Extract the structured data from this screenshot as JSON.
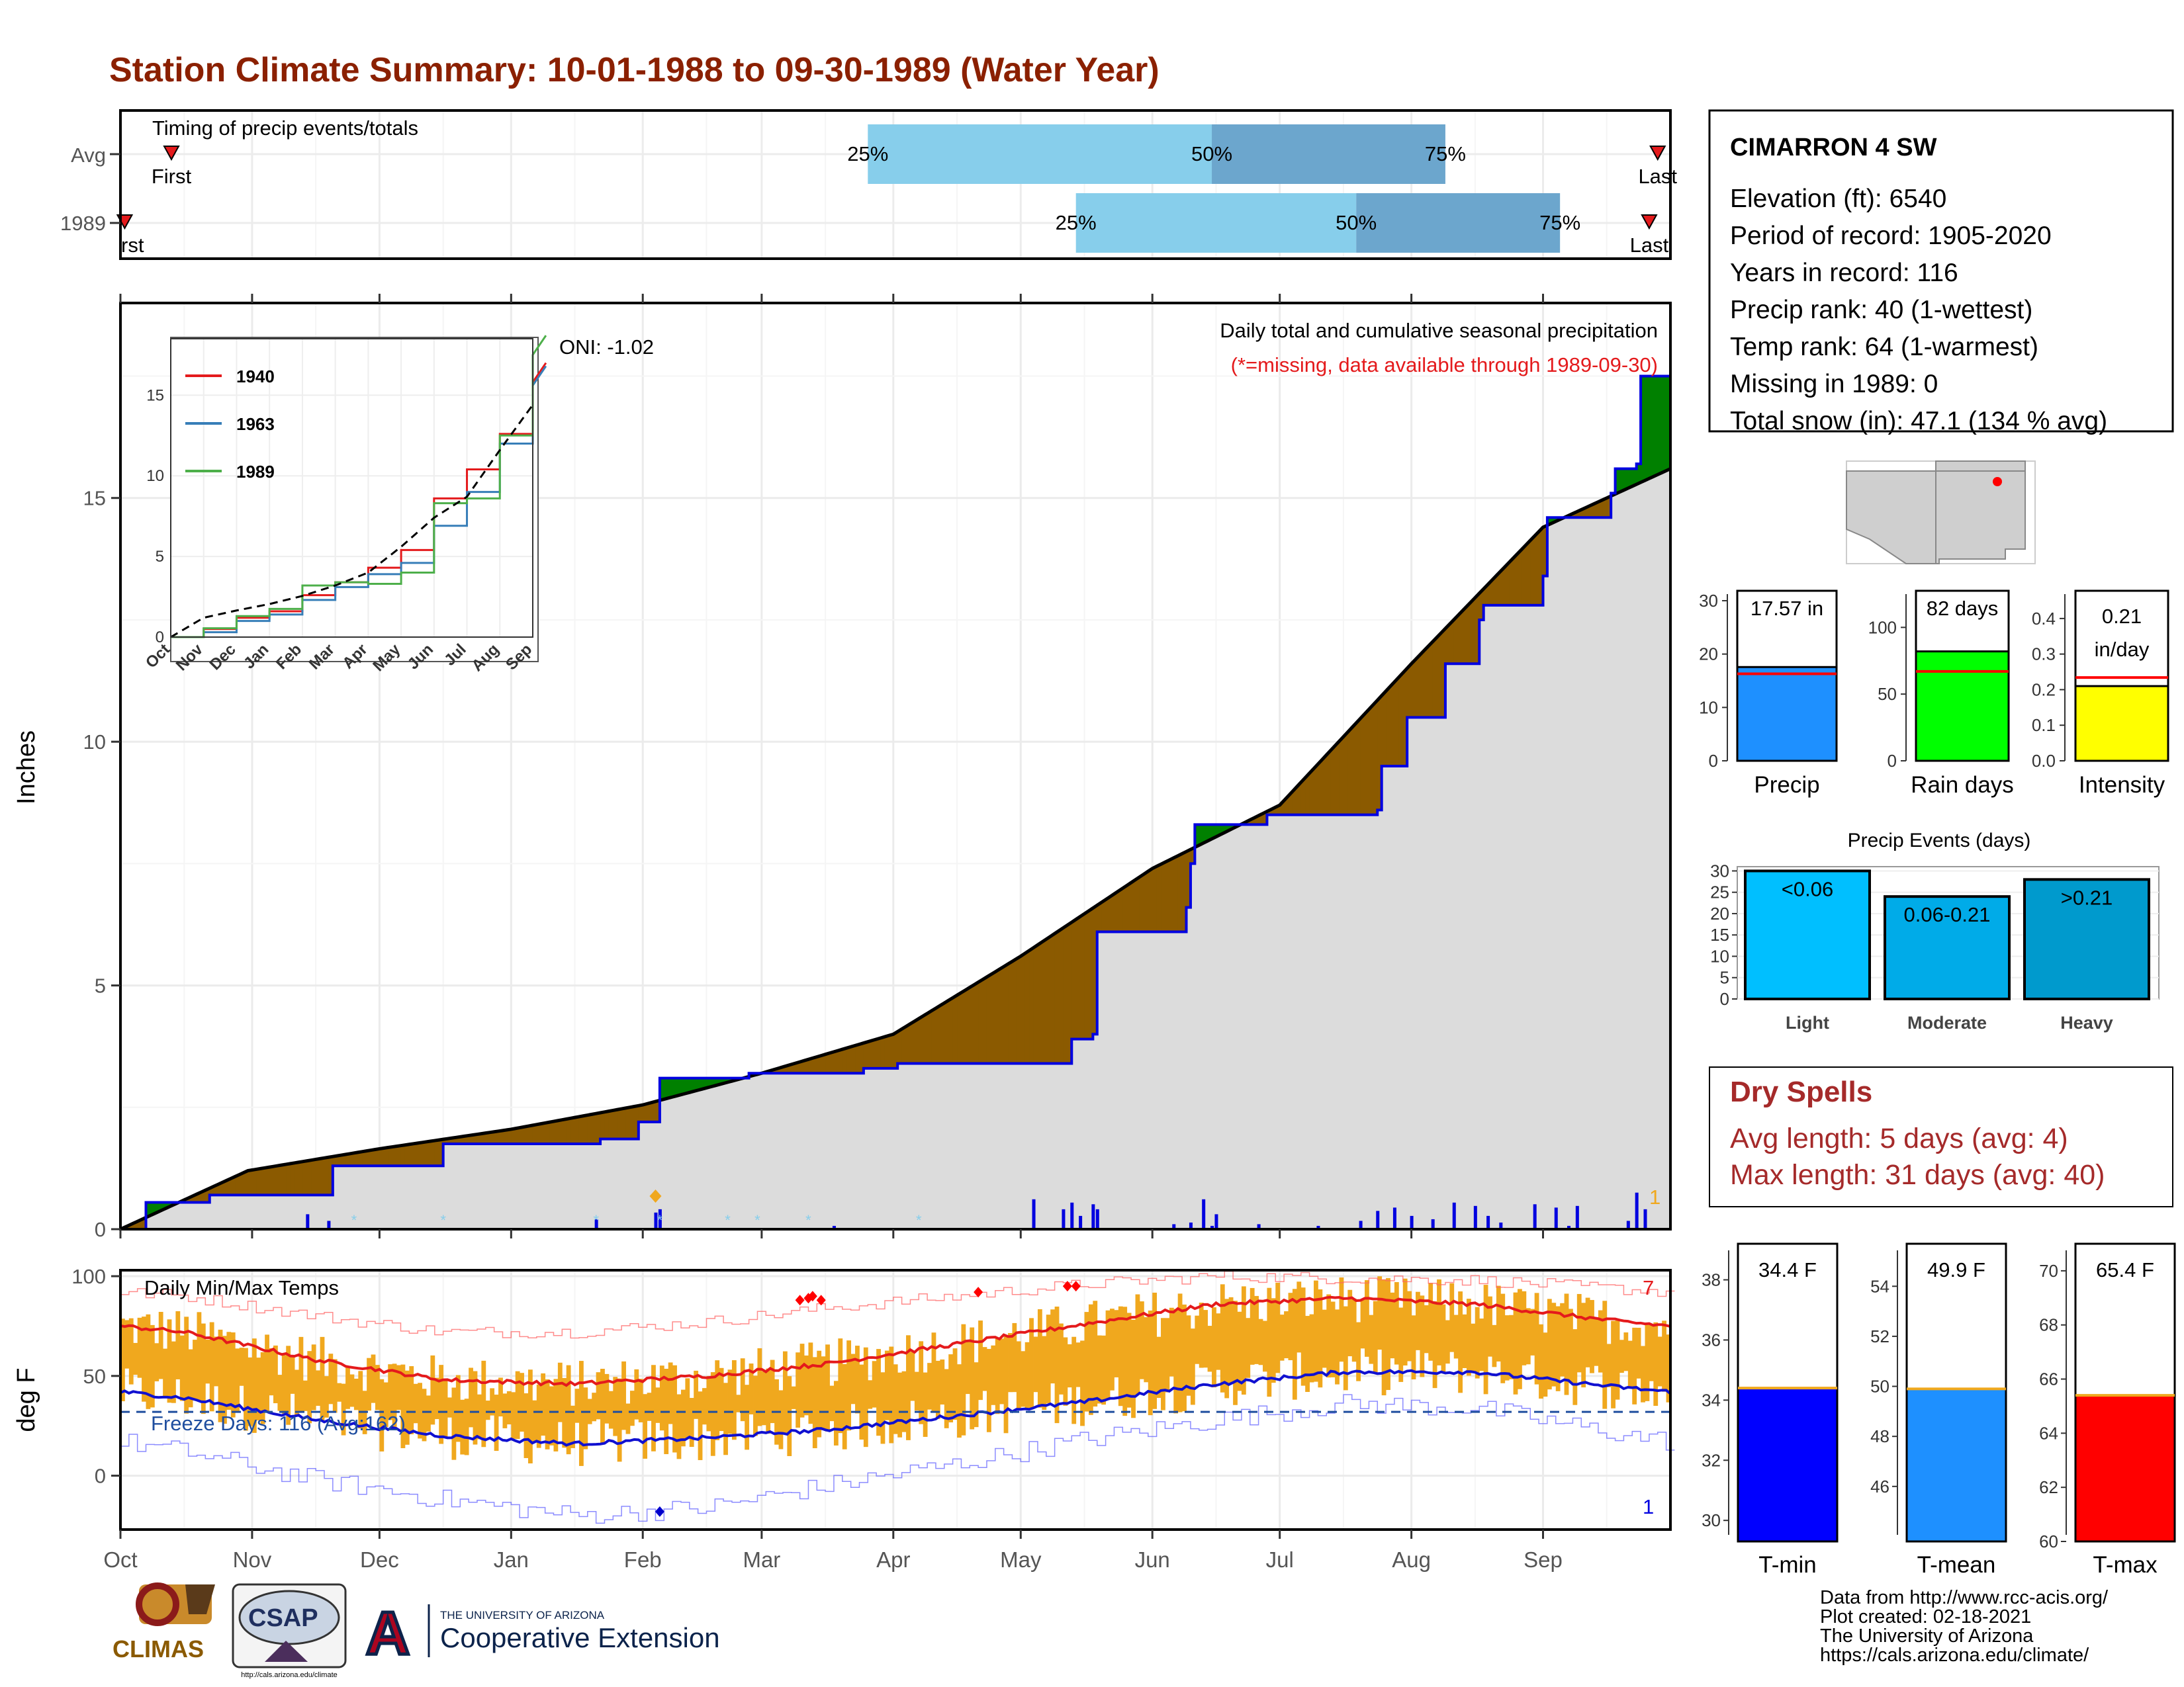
{
  "title": "Station Climate Summary: 10-01-1988 to 09-30-1989 (Water Year)",
  "colors": {
    "title": "#8B2000",
    "green": "#008000",
    "brown": "#8B5A00",
    "gray_fill": "#dcdcdc",
    "light_blue": "#87CEEB",
    "mid_blue": "#6CA6CD",
    "orange": "#F0A81E",
    "red": "#E41A1C",
    "dark_red": "#A52A2A",
    "blue": "#0000E0"
  },
  "timing": {
    "label": "Timing of precip events/totals",
    "rows": [
      "Avg",
      "1989"
    ],
    "first_label": "First",
    "first_label_clipped": "rst",
    "last_label": "Last",
    "pct_labels": [
      "25%",
      "50%",
      "75%"
    ]
  },
  "months": [
    "Oct",
    "Nov",
    "Dec",
    "Jan",
    "Feb",
    "Mar",
    "Apr",
    "May",
    "Jun",
    "Jul",
    "Aug",
    "Sep"
  ],
  "precip_panel": {
    "ylabel": "Inches",
    "oni": "ONI: -1.02",
    "note1": "Daily total and cumulative seasonal precipitation",
    "note2": "(*=missing, data available through 1989-09-30)",
    "max_daily_label": "1"
  },
  "temp_panel": {
    "ylabel": "deg F",
    "label": "Daily Min/Max Temps",
    "freeze_days": "Freeze Days: 116 (Avg:162)",
    "record_high_count": "7",
    "record_low_count": "1"
  },
  "station": {
    "name": "CIMARRON 4 SW",
    "lines": [
      "Elevation (ft): 6540",
      "Period of record: 1905-2020",
      "Years in record: 116",
      "Precip rank: 40 (1-wettest)",
      "Temp rank: 64 (1-warmest)",
      "Missing in 1989: 0",
      "Total snow (in): 47.1 (134 % avg)"
    ]
  },
  "summary_bars": [
    {
      "label": "Precip",
      "value_text": "17.57 in",
      "value": 17.57,
      "avg": 16.3,
      "ymax": 30,
      "ticks": [
        "0",
        "10",
        "20",
        "30"
      ],
      "color": "#1E90FF"
    },
    {
      "label": "Rain days",
      "value_text": "82 days",
      "value": 82,
      "avg": 67,
      "ymax": 120,
      "ticks": [
        "0",
        "50",
        "100"
      ],
      "color": "#00FF00"
    },
    {
      "label": "Intensity",
      "value_text": "0.21 in/day",
      "value_line1": "0.21",
      "value_line2": "in/day",
      "value": 0.21,
      "avg": 0.234,
      "ymax": 0.45,
      "ticks": [
        "0.0",
        "0.1",
        "0.2",
        "0.3",
        "0.4"
      ],
      "color": "#FFFF00"
    }
  ],
  "events": {
    "title": "Precip Events (days)",
    "ticks": [
      "0",
      "5",
      "10",
      "15",
      "20",
      "25",
      "30"
    ],
    "bars": [
      {
        "label": "Light",
        "range": "<0.06",
        "value": 30,
        "color": "#00BFFF"
      },
      {
        "label": "Moderate",
        "range": "0.06-0.21",
        "value": 24,
        "color": "#00ABE8"
      },
      {
        "label": "Heavy",
        "range": ">0.21",
        "value": 28,
        "color": "#009ACD"
      }
    ]
  },
  "dry_spells": {
    "title": "Dry Spells",
    "avg": "Avg length: 5 days (avg: 4)",
    "max": "Max length: 31 days (avg: 40)"
  },
  "temp_bars": [
    {
      "label": "T-min",
      "value_text": "34.4 F",
      "value": 34.4,
      "ymin": 29.3,
      "ymax": 39.2,
      "ticks": [
        "30",
        "32",
        "34",
        "36",
        "38"
      ],
      "color": "#0000FF"
    },
    {
      "label": "T-mean",
      "value_text": "49.9 F",
      "value": 49.9,
      "ymin": 43.8,
      "ymax": 55.7,
      "ticks": [
        "46",
        "48",
        "50",
        "52",
        "54"
      ],
      "color": "#1E90FF"
    },
    {
      "label": "T-max",
      "value_text": "65.4 F",
      "value": 65.4,
      "ymin": 60,
      "ymax": 71,
      "ticks": [
        "60",
        "62",
        "64",
        "66",
        "68",
        "70"
      ],
      "color": "#FF0000"
    }
  ],
  "footer": {
    "lines": [
      "Data from http://www.rcc-acis.org/",
      "Plot created: 02-18-2021",
      "The University of Arizona",
      "https://cals.arizona.edu/climate/"
    ]
  },
  "logos": {
    "climas": "CLIMAS",
    "csap": "CSAP",
    "csap_url": "http://cals.arizona.edu/climate",
    "ua_small": "THE UNIVERSITY OF ARIZONA",
    "ua_big": "Cooperative Extension"
  },
  "chart_data": [
    {
      "type": "bar",
      "name": "timing",
      "x_unit": "day of water year",
      "rows": [
        {
          "row": "Avg",
          "first_day": 12,
          "q25_day": 176,
          "q50_day": 257,
          "q75_day": 312,
          "last_day": 362
        },
        {
          "row": "1989",
          "first_day": 1,
          "q25_day": 225,
          "q50_day": 291,
          "q75_day": 339,
          "last_day": 360
        }
      ]
    },
    {
      "type": "line",
      "name": "cumulative_precip",
      "xlabel": "",
      "ylabel": "Inches",
      "ylim": [
        0,
        19
      ],
      "x_months": [
        "Oct",
        "Nov",
        "Dec",
        "Jan",
        "Feb",
        "Mar",
        "Apr",
        "May",
        "Jun",
        "Jul",
        "Aug",
        "Sep"
      ],
      "series": [
        {
          "name": "Average",
          "x_day": [
            0,
            30,
            61,
            92,
            123,
            151,
            182,
            212,
            243,
            273,
            304,
            335,
            365
          ],
          "values": [
            0,
            1.2,
            1.65,
            2.05,
            2.55,
            3.2,
            4.0,
            5.6,
            7.4,
            8.7,
            11.6,
            14.4,
            15.6
          ]
        },
        {
          "name": "1989",
          "x_day": [
            0,
            5,
            6,
            20,
            21,
            49,
            50,
            75,
            76,
            112,
            113,
            122,
            126,
            127,
            148,
            175,
            182,
            183,
            211,
            224,
            229,
            230,
            250,
            251,
            252,
            252,
            253,
            270,
            271,
            296,
            297,
            303,
            310,
            312,
            320,
            321,
            335,
            336,
            350,
            351,
            352,
            357,
            358,
            365
          ],
          "values": [
            0,
            0,
            0.55,
            0.55,
            0.7,
            0.7,
            1.3,
            1.3,
            1.75,
            1.75,
            1.85,
            2.2,
            2.2,
            3.1,
            3.2,
            3.3,
            3.3,
            3.4,
            3.4,
            3.9,
            4.0,
            6.1,
            6.1,
            6.6,
            6.9,
            7.5,
            8.3,
            8.5,
            8.5,
            8.6,
            9.5,
            10.5,
            10.5,
            11.6,
            12.5,
            12.8,
            13.4,
            14.6,
            14.6,
            15.1,
            15.6,
            15.7,
            17.5,
            17.5
          ]
        }
      ],
      "daily_precip_in": [
        {
          "day": 44,
          "value": 0.09
        },
        {
          "day": 49,
          "value": 0.05
        },
        {
          "day": 112,
          "value": 0.06
        },
        {
          "day": 126,
          "value": 0.1
        },
        {
          "day": 127,
          "value": 0.12
        },
        {
          "day": 168,
          "value": 0.02
        },
        {
          "day": 215,
          "value": 0.18
        },
        {
          "day": 222,
          "value": 0.12
        },
        {
          "day": 224,
          "value": 0.16
        },
        {
          "day": 226,
          "value": 0.08
        },
        {
          "day": 229,
          "value": 0.15
        },
        {
          "day": 230,
          "value": 0.12
        },
        {
          "day": 248,
          "value": 0.03
        },
        {
          "day": 252,
          "value": 0.04
        },
        {
          "day": 255,
          "value": 0.18
        },
        {
          "day": 257,
          "value": 0.02
        },
        {
          "day": 258,
          "value": 0.09
        },
        {
          "day": 268,
          "value": 0.03
        },
        {
          "day": 282,
          "value": 0.02
        },
        {
          "day": 292,
          "value": 0.05
        },
        {
          "day": 296,
          "value": 0.11
        },
        {
          "day": 300,
          "value": 0.13
        },
        {
          "day": 304,
          "value": 0.08
        },
        {
          "day": 309,
          "value": 0.06
        },
        {
          "day": 314,
          "value": 0.16
        },
        {
          "day": 319,
          "value": 0.14
        },
        {
          "day": 322,
          "value": 0.08
        },
        {
          "day": 325,
          "value": 0.04
        },
        {
          "day": 333,
          "value": 0.15
        },
        {
          "day": 338,
          "value": 0.13
        },
        {
          "day": 341,
          "value": 0.02
        },
        {
          "day": 343,
          "value": 0.14
        },
        {
          "day": 355,
          "value": 0.05
        },
        {
          "day": 357,
          "value": 0.22
        },
        {
          "day": 359,
          "value": 0.12
        }
      ]
    },
    {
      "type": "line",
      "name": "inset_cumulative_comparison",
      "ylim": [
        0,
        18.5
      ],
      "x_months": [
        "Oct",
        "Nov",
        "Dec",
        "Jan",
        "Feb",
        "Mar",
        "Apr",
        "May",
        "Jun",
        "Jul",
        "Aug",
        "Sep"
      ],
      "series": [
        {
          "name": "1940",
          "values": [
            0,
            0.5,
            1.2,
            1.6,
            2.6,
            3.4,
            4.3,
            5.4,
            8.6,
            10.4,
            12.6,
            15.8
          ]
        },
        {
          "name": "1963",
          "values": [
            0,
            0.3,
            1.0,
            1.4,
            2.3,
            3.1,
            3.9,
            4.6,
            6.9,
            9.0,
            12.0,
            15.6
          ]
        },
        {
          "name": "1989",
          "values": [
            0,
            0.55,
            1.3,
            1.75,
            3.2,
            3.4,
            3.3,
            4.0,
            8.3,
            8.6,
            12.5,
            17.5
          ]
        }
      ]
    },
    {
      "type": "bar",
      "name": "daily_temps",
      "ylabel": "deg F",
      "ylim": [
        -27,
        103
      ],
      "months": [
        "Oct",
        "Nov",
        "Dec",
        "Jan",
        "Feb",
        "Mar",
        "Apr",
        "May",
        "Jun",
        "Jul",
        "Aug",
        "Sep"
      ],
      "series": [
        {
          "name": "Avg Max",
          "values": [
            72,
            58,
            48,
            46,
            50,
            56,
            66,
            76,
            86,
            89,
            86,
            78
          ]
        },
        {
          "name": "Avg Min",
          "values": [
            39,
            28,
            20,
            16,
            19,
            23,
            30,
            37,
            46,
            52,
            52,
            45
          ]
        },
        {
          "name": "Record Max",
          "values": [
            90,
            80,
            72,
            72,
            77,
            84,
            90,
            96,
            100,
            99,
            98,
            94
          ]
        },
        {
          "name": "Record Min",
          "values": [
            12,
            -2,
            -12,
            -20,
            -16,
            -5,
            6,
            18,
            28,
            36,
            34,
            22
          ]
        }
      ]
    }
  ]
}
